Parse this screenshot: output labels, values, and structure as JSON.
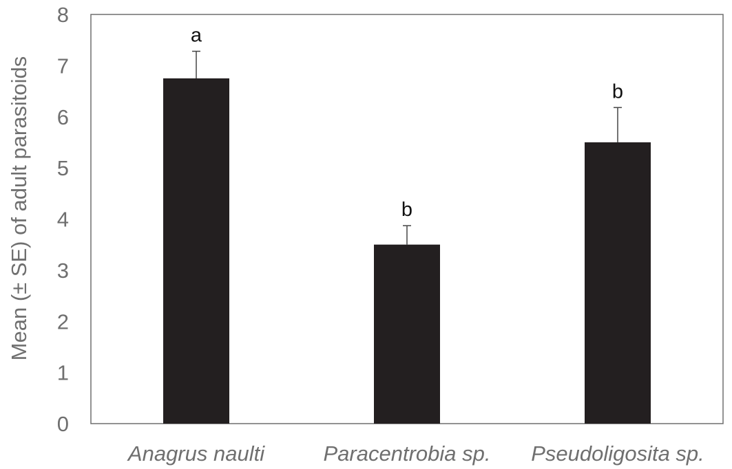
{
  "chart_data": {
    "type": "bar",
    "categories": [
      "Anagrus naulti",
      "Paracentrobia sp.",
      "Pseudoligosita sp."
    ],
    "values": [
      6.75,
      3.5,
      5.5
    ],
    "errors": [
      0.53,
      0.37,
      0.68
    ],
    "significance_letters": [
      "a",
      "b",
      "b"
    ],
    "title": "",
    "xlabel": "",
    "ylabel": "Mean (± SE) of adult  parasitoids",
    "ylim": [
      0,
      8
    ],
    "yticks": [
      "0",
      "1",
      "2",
      "3",
      "4",
      "5",
      "6",
      "7",
      "8"
    ],
    "grid": false,
    "legend": "none",
    "bar_color": "#231f20",
    "error_bar_color": "#444444",
    "axis_color": "#6f6f6f"
  }
}
